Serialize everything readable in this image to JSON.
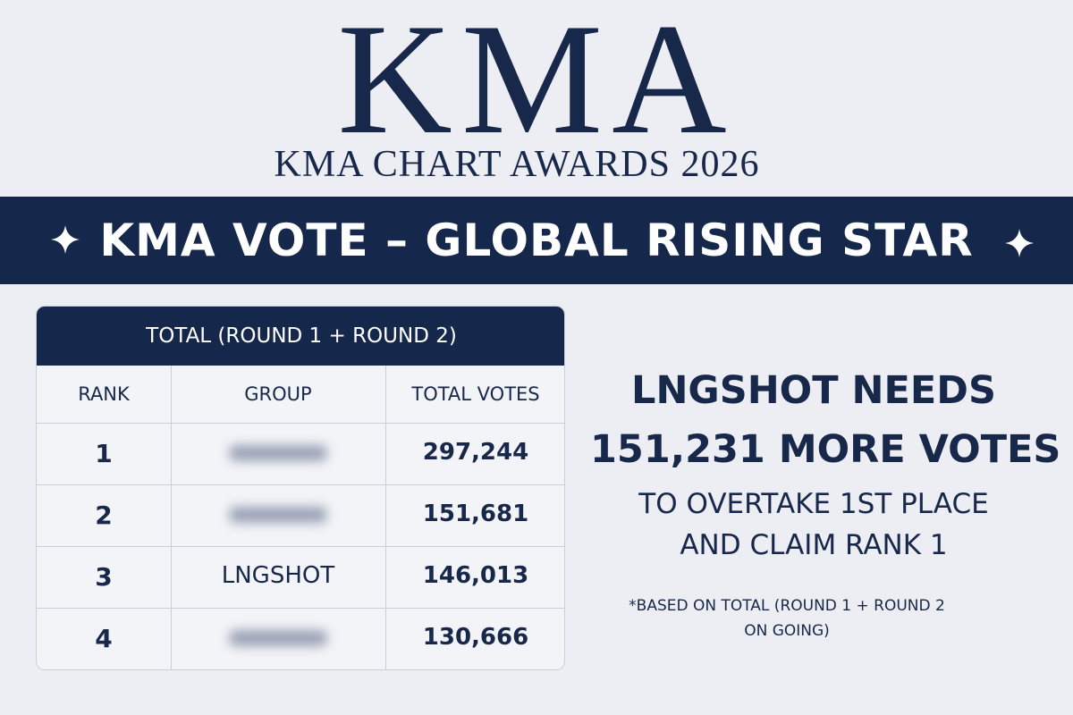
{
  "header": {
    "logo": "KMA",
    "subtitle": "KMA CHART AWARDS 2026"
  },
  "banner": "KMA VOTE – GLOBAL RISING STAR",
  "table": {
    "title": "TOTAL (ROUND 1 + ROUND 2)",
    "columns": [
      "RANK",
      "GROUP",
      "TOTAL VOTES"
    ],
    "rows": [
      [
        "1",
        null,
        "297,244"
      ],
      [
        "2",
        null,
        "151,681"
      ],
      [
        "3",
        "LNGSHOT",
        "146,013"
      ],
      [
        "4",
        null,
        "130,666"
      ]
    ]
  },
  "message": {
    "lines": [
      "LNGSHOT NEEDS",
      "151,231 MORE VOTES",
      "TO OVERTAKE 1ST PLACE",
      "AND CLAIM RANK 1"
    ],
    "note": [
      "*BASED ON TOTAL (ROUND 1 + ROUND 2",
      "ON GOING)"
    ]
  }
}
